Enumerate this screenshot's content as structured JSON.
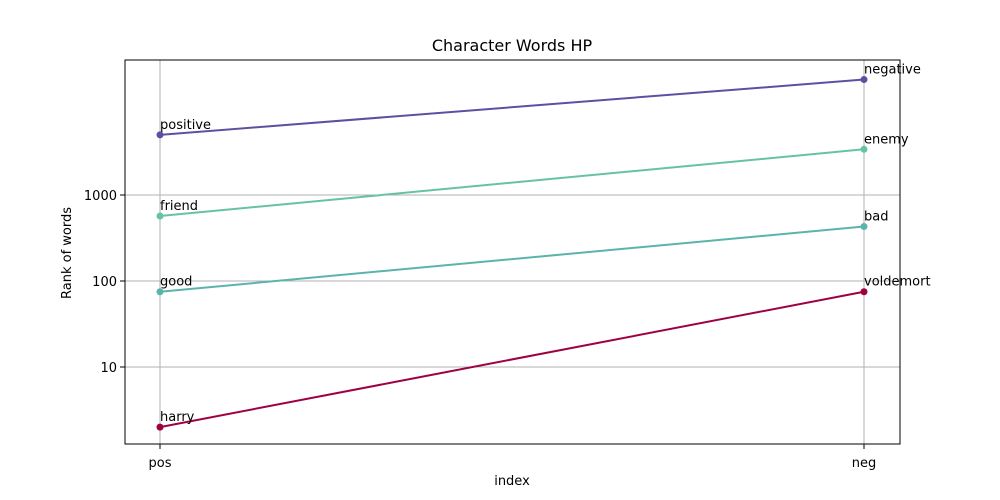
{
  "chart_data": {
    "type": "line",
    "title": "Character Words HP",
    "xlabel": "index",
    "ylabel": "Rank of words",
    "categories": [
      "pos",
      "neg"
    ],
    "y_scale": "log",
    "ylim": [
      1.25,
      2000000
    ],
    "y_ticks": [
      10,
      100,
      1000
    ],
    "y_tick_labels": [
      "10",
      "100",
      "1000"
    ],
    "grid": true,
    "series": [
      {
        "point_labels": [
          "positive",
          "negative"
        ],
        "values": [
          5000,
          22000
        ],
        "color": "#5e4fa2"
      },
      {
        "point_labels": [
          "friend",
          "enemy"
        ],
        "values": [
          570,
          3400
        ],
        "color": "#66c2a5"
      },
      {
        "point_labels": [
          "good",
          "bad"
        ],
        "values": [
          75,
          430
        ],
        "color": "#5ab4ac"
      },
      {
        "point_labels": [
          "harry",
          "voldemort"
        ],
        "values": [
          2,
          75
        ],
        "color": "#9e0142"
      }
    ]
  }
}
